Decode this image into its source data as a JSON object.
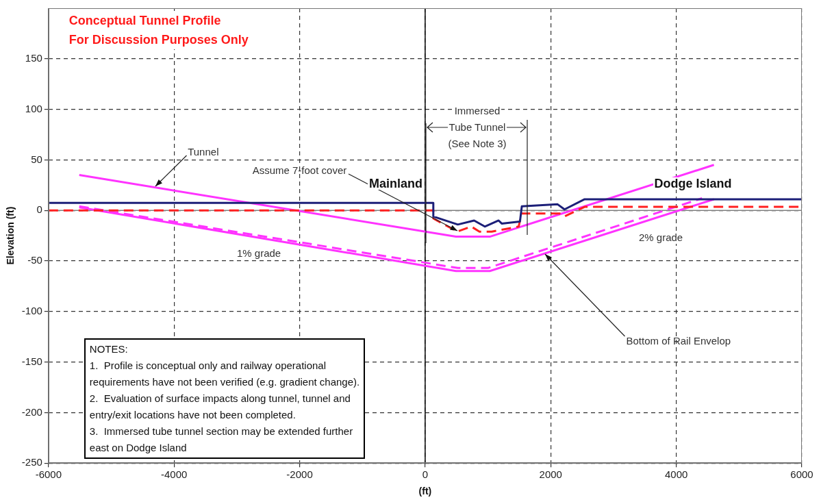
{
  "chart_data": {
    "type": "line",
    "title": "Conceptual Tunnel Profile",
    "subtitle": "For Discussion Purposes Only",
    "xlabel": "(ft)",
    "ylabel": "Elevation (ft)",
    "xlim": [
      -6000,
      6000
    ],
    "xticks": [
      -6000,
      -4000,
      -2000,
      0,
      2000,
      4000,
      6000
    ],
    "ylim": [
      -250,
      200
    ],
    "yticks": [
      -250,
      -200,
      -150,
      -100,
      -50,
      0,
      50,
      100,
      150
    ],
    "grid": true,
    "legend": false,
    "marker": "none",
    "series": [
      {
        "color": "#1c1f78",
        "line_style": "solid",
        "x": [
          -6000,
          130,
          130,
          520,
          780,
          950,
          1170,
          1220,
          1510,
          1540,
          2110,
          2220,
          2540,
          6000
        ],
        "values": [
          7.5,
          7.5,
          -6,
          -14,
          -10,
          -16,
          -10,
          -13,
          -11,
          4,
          6,
          1,
          11,
          11
        ]
      },
      {
        "color": "#ff2020",
        "line_style": "dashed",
        "x": [
          -6000,
          130,
          130,
          510,
          735,
          865,
          1060,
          1490,
          1535,
          2140,
          2220,
          2540,
          6000
        ],
        "values": [
          0,
          0,
          -8,
          -21,
          -16,
          -21,
          -21,
          -16,
          -3,
          -3,
          -6,
          3.5,
          3.5
        ]
      },
      {
        "color": "#ff33ff",
        "line_style": "solid",
        "x": [
          -5510,
          490,
          1030,
          4600
        ],
        "values": [
          35,
          -26,
          -26,
          45
        ]
      },
      {
        "color": "#ff33ff",
        "line_style": "solid",
        "x": [
          -5510,
          490,
          1030,
          4600
        ],
        "values": [
          3,
          -60,
          -60,
          11
        ]
      },
      {
        "color": "#ff33ff",
        "line_style": "dashed",
        "x": [
          -5510,
          520,
          1000,
          4410
        ],
        "values": [
          4,
          -57,
          -57,
          12
        ]
      }
    ],
    "ref_lines": [
      {
        "axis": "x",
        "value": 0,
        "color": "#000000",
        "line_style": "solid"
      },
      {
        "axis": "y",
        "value": 0,
        "color": "#808080",
        "line_style": "solid"
      }
    ],
    "annotations": [
      {
        "text": "Tunnel",
        "x": -4300,
        "y": 24
      },
      {
        "text": "Assume 7-foot cover",
        "x": 510,
        "y": -20
      },
      {
        "text": "Bottom of Rail Envelop",
        "x": 1910,
        "y": -43
      },
      "Mainland",
      "Dodge Island",
      "1% grade",
      "2% grade",
      "Immersed\nTube Tunnel\n(See Note 3)",
      "NOTES:\n1.  Profile is conceptual only and railway operational\nrequirements have not been verified (e.g. gradient change).\n2.  Evaluation of surface impacts along tunnel, tunnel and\nentry/exit locations have not been completed.\n3.  Immersed tube tunnel section may be extended further\neast on Dodge Island"
    ]
  }
}
